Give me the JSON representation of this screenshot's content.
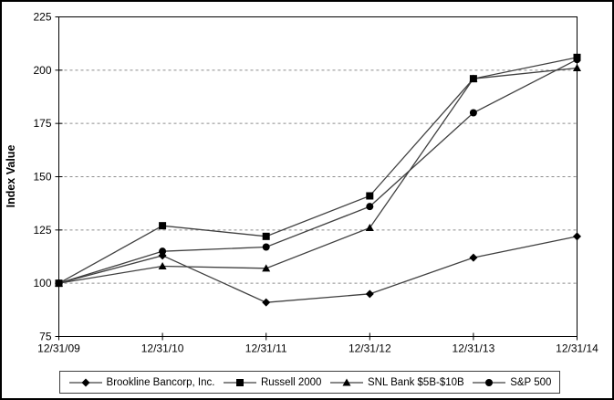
{
  "chart_data": {
    "type": "line",
    "title": "",
    "xlabel": "",
    "ylabel": "Index Value",
    "ylim": [
      75,
      225
    ],
    "yticks": [
      75,
      100,
      125,
      150,
      175,
      200,
      225
    ],
    "grid": "horizontal dashed gridlines at 100-200",
    "legend_position": "bottom",
    "categories": [
      "12/31/09",
      "12/31/10",
      "12/31/11",
      "12/31/12",
      "12/31/13",
      "12/31/14"
    ],
    "series": [
      {
        "name": "Brookline Bancorp, Inc.",
        "marker": "diamond",
        "values": [
          100,
          113,
          91,
          95,
          112,
          122
        ]
      },
      {
        "name": "Russell 2000",
        "marker": "square",
        "values": [
          100,
          127,
          122,
          141,
          196,
          206
        ]
      },
      {
        "name": "SNL Bank $5B-$10B",
        "marker": "triangle",
        "values": [
          100,
          108,
          107,
          126,
          196,
          201
        ]
      },
      {
        "name": "S&P 500",
        "marker": "circle",
        "values": [
          100,
          115,
          117,
          136,
          180,
          205
        ]
      }
    ],
    "colors": {
      "line": "#404040",
      "marker": "#000000",
      "gridline": "#8c8c8c",
      "axis": "#000000",
      "text": "#000000",
      "background": "#ffffff"
    }
  }
}
